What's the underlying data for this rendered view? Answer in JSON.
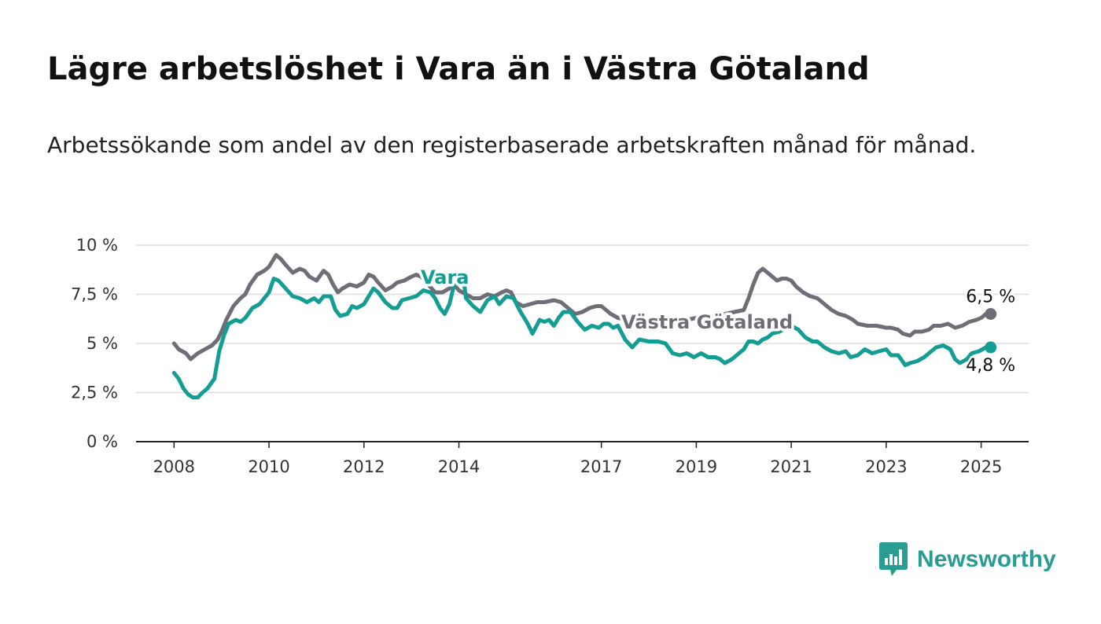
{
  "title": "Lägre arbetslöshet i Vara än i Västra Götaland",
  "subtitle": "Arbetssökande som andel av den registerbaserade arbetskraften månad för månad.",
  "brand": {
    "name": "Newsworthy",
    "color": "#2a9d93",
    "icon": "newsworthy-logo-icon"
  },
  "chart_data": {
    "type": "line",
    "title": "Lägre arbetslöshet i Vara än i Västra Götaland",
    "subtitle": "Arbetssökande som andel av den registerbaserade arbetskraften månad för månad.",
    "xlabel": "",
    "ylabel": "",
    "x_ticks": [
      {
        "year": 2008,
        "label": "2008"
      },
      {
        "year": 2010,
        "label": "2010"
      },
      {
        "year": 2012,
        "label": "2012"
      },
      {
        "year": 2014,
        "label": "2014"
      },
      {
        "year": 2017,
        "label": "2017"
      },
      {
        "year": 2019,
        "label": "2019"
      },
      {
        "year": 2021,
        "label": "2021"
      },
      {
        "year": 2023,
        "label": "2023"
      },
      {
        "year": 2025,
        "label": "2025"
      }
    ],
    "y_ticks": [
      {
        "value": 0,
        "label": "0 %"
      },
      {
        "value": 2.5,
        "label": "2,5 %"
      },
      {
        "value": 5,
        "label": "5 %"
      },
      {
        "value": 7.5,
        "label": "7,5 %"
      },
      {
        "value": 10,
        "label": "10 %"
      }
    ],
    "xlim": [
      2007.2,
      2026.0
    ],
    "ylim": [
      0,
      10
    ],
    "grid": true,
    "legend": "none",
    "series": [
      {
        "name": "Västra Götaland",
        "color": "#6f6e77",
        "end_label": "6,5 %",
        "points": [
          [
            2008.0,
            5.0
          ],
          [
            2008.1,
            4.7
          ],
          [
            2008.25,
            4.5
          ],
          [
            2008.35,
            4.2
          ],
          [
            2008.5,
            4.5
          ],
          [
            2008.65,
            4.7
          ],
          [
            2008.8,
            4.9
          ],
          [
            2008.92,
            5.2
          ],
          [
            2009.0,
            5.6
          ],
          [
            2009.1,
            6.2
          ],
          [
            2009.25,
            6.9
          ],
          [
            2009.4,
            7.3
          ],
          [
            2009.5,
            7.5
          ],
          [
            2009.6,
            8.0
          ],
          [
            2009.75,
            8.5
          ],
          [
            2009.9,
            8.7
          ],
          [
            2010.0,
            8.9
          ],
          [
            2010.1,
            9.3
          ],
          [
            2010.15,
            9.5
          ],
          [
            2010.25,
            9.3
          ],
          [
            2010.35,
            9.0
          ],
          [
            2010.5,
            8.6
          ],
          [
            2010.65,
            8.8
          ],
          [
            2010.75,
            8.7
          ],
          [
            2010.85,
            8.4
          ],
          [
            2011.0,
            8.2
          ],
          [
            2011.15,
            8.7
          ],
          [
            2011.25,
            8.5
          ],
          [
            2011.35,
            8.0
          ],
          [
            2011.45,
            7.6
          ],
          [
            2011.55,
            7.8
          ],
          [
            2011.7,
            8.0
          ],
          [
            2011.85,
            7.9
          ],
          [
            2012.0,
            8.1
          ],
          [
            2012.1,
            8.5
          ],
          [
            2012.2,
            8.4
          ],
          [
            2012.3,
            8.1
          ],
          [
            2012.45,
            7.7
          ],
          [
            2012.6,
            7.9
          ],
          [
            2012.7,
            8.1
          ],
          [
            2012.85,
            8.2
          ],
          [
            2013.0,
            8.4
          ],
          [
            2013.1,
            8.5
          ],
          [
            2013.2,
            8.4
          ],
          [
            2013.35,
            8.0
          ],
          [
            2013.5,
            7.6
          ],
          [
            2013.65,
            7.6
          ],
          [
            2013.8,
            7.8
          ],
          [
            2013.9,
            8.0
          ],
          [
            2014.0,
            7.7
          ],
          [
            2014.15,
            7.5
          ],
          [
            2014.3,
            7.3
          ],
          [
            2014.45,
            7.3
          ],
          [
            2014.6,
            7.5
          ],
          [
            2014.75,
            7.4
          ],
          [
            2014.9,
            7.6
          ],
          [
            2015.0,
            7.7
          ],
          [
            2015.1,
            7.6
          ],
          [
            2015.2,
            7.1
          ],
          [
            2015.35,
            6.9
          ],
          [
            2015.5,
            7.0
          ],
          [
            2015.65,
            7.1
          ],
          [
            2015.8,
            7.1
          ],
          [
            2016.0,
            7.2
          ],
          [
            2016.15,
            7.1
          ],
          [
            2016.3,
            6.8
          ],
          [
            2016.45,
            6.5
          ],
          [
            2016.6,
            6.6
          ],
          [
            2016.75,
            6.8
          ],
          [
            2016.9,
            6.9
          ],
          [
            2017.0,
            6.9
          ],
          [
            2017.1,
            6.7
          ],
          [
            2017.2,
            6.5
          ],
          [
            2017.35,
            6.3
          ],
          [
            2017.5,
            6.2
          ],
          [
            2017.7,
            6.1
          ],
          [
            2017.85,
            6.0
          ],
          [
            2018.0,
            6.0
          ],
          [
            2018.2,
            6.0
          ],
          [
            2018.4,
            6.0
          ],
          [
            2018.6,
            6.1
          ],
          [
            2018.8,
            6.2
          ],
          [
            2019.0,
            6.3
          ],
          [
            2019.2,
            6.3
          ],
          [
            2019.4,
            6.4
          ],
          [
            2019.6,
            6.5
          ],
          [
            2019.8,
            6.6
          ],
          [
            2020.0,
            6.7
          ],
          [
            2020.1,
            7.3
          ],
          [
            2020.2,
            8.0
          ],
          [
            2020.3,
            8.6
          ],
          [
            2020.4,
            8.8
          ],
          [
            2020.5,
            8.6
          ],
          [
            2020.6,
            8.4
          ],
          [
            2020.7,
            8.2
          ],
          [
            2020.8,
            8.3
          ],
          [
            2020.9,
            8.3
          ],
          [
            2021.0,
            8.2
          ],
          [
            2021.1,
            7.9
          ],
          [
            2021.25,
            7.6
          ],
          [
            2021.4,
            7.4
          ],
          [
            2021.55,
            7.3
          ],
          [
            2021.7,
            7.0
          ],
          [
            2021.85,
            6.7
          ],
          [
            2022.0,
            6.5
          ],
          [
            2022.15,
            6.4
          ],
          [
            2022.3,
            6.2
          ],
          [
            2022.4,
            6.0
          ],
          [
            2022.6,
            5.9
          ],
          [
            2022.8,
            5.9
          ],
          [
            2023.0,
            5.8
          ],
          [
            2023.1,
            5.8
          ],
          [
            2023.25,
            5.7
          ],
          [
            2023.35,
            5.5
          ],
          [
            2023.5,
            5.4
          ],
          [
            2023.6,
            5.6
          ],
          [
            2023.75,
            5.6
          ],
          [
            2023.9,
            5.7
          ],
          [
            2024.0,
            5.9
          ],
          [
            2024.15,
            5.9
          ],
          [
            2024.3,
            6.0
          ],
          [
            2024.45,
            5.8
          ],
          [
            2024.6,
            5.9
          ],
          [
            2024.75,
            6.1
          ],
          [
            2024.9,
            6.2
          ],
          [
            2025.0,
            6.3
          ],
          [
            2025.1,
            6.5
          ],
          [
            2025.2,
            6.5
          ]
        ]
      },
      {
        "name": "Vara",
        "color": "#139d93",
        "end_label": "4,8 %",
        "points": [
          [
            2008.0,
            3.5
          ],
          [
            2008.1,
            3.2
          ],
          [
            2008.2,
            2.7
          ],
          [
            2008.3,
            2.4
          ],
          [
            2008.4,
            2.25
          ],
          [
            2008.5,
            2.25
          ],
          [
            2008.6,
            2.5
          ],
          [
            2008.7,
            2.7
          ],
          [
            2008.85,
            3.2
          ],
          [
            2008.95,
            4.6
          ],
          [
            2009.05,
            5.4
          ],
          [
            2009.15,
            6.0
          ],
          [
            2009.3,
            6.2
          ],
          [
            2009.4,
            6.1
          ],
          [
            2009.5,
            6.3
          ],
          [
            2009.65,
            6.8
          ],
          [
            2009.8,
            7.0
          ],
          [
            2009.9,
            7.3
          ],
          [
            2010.0,
            7.6
          ],
          [
            2010.1,
            8.3
          ],
          [
            2010.2,
            8.2
          ],
          [
            2010.35,
            7.8
          ],
          [
            2010.5,
            7.4
          ],
          [
            2010.65,
            7.3
          ],
          [
            2010.8,
            7.1
          ],
          [
            2010.95,
            7.3
          ],
          [
            2011.05,
            7.1
          ],
          [
            2011.15,
            7.4
          ],
          [
            2011.3,
            7.4
          ],
          [
            2011.4,
            6.7
          ],
          [
            2011.5,
            6.4
          ],
          [
            2011.65,
            6.5
          ],
          [
            2011.75,
            6.9
          ],
          [
            2011.85,
            6.8
          ],
          [
            2012.0,
            7.0
          ],
          [
            2012.1,
            7.4
          ],
          [
            2012.2,
            7.8
          ],
          [
            2012.3,
            7.6
          ],
          [
            2012.45,
            7.1
          ],
          [
            2012.6,
            6.8
          ],
          [
            2012.7,
            6.8
          ],
          [
            2012.8,
            7.2
          ],
          [
            2012.95,
            7.3
          ],
          [
            2013.1,
            7.4
          ],
          [
            2013.25,
            7.7
          ],
          [
            2013.4,
            7.6
          ],
          [
            2013.5,
            7.3
          ],
          [
            2013.6,
            6.8
          ],
          [
            2013.7,
            6.5
          ],
          [
            2013.8,
            7.0
          ],
          [
            2013.9,
            8.0
          ],
          [
            2014.1,
            8.2
          ],
          [
            2014.15,
            7.3
          ],
          [
            2014.3,
            6.9
          ],
          [
            2014.45,
            6.6
          ],
          [
            2014.6,
            7.2
          ],
          [
            2014.75,
            7.4
          ],
          [
            2014.85,
            7.0
          ],
          [
            2015.0,
            7.4
          ],
          [
            2015.15,
            7.3
          ],
          [
            2015.3,
            6.6
          ],
          [
            2015.45,
            6.0
          ],
          [
            2015.55,
            5.5
          ],
          [
            2015.7,
            6.2
          ],
          [
            2015.8,
            6.1
          ],
          [
            2015.9,
            6.2
          ],
          [
            2016.0,
            5.9
          ],
          [
            2016.1,
            6.3
          ],
          [
            2016.2,
            6.6
          ],
          [
            2016.35,
            6.6
          ],
          [
            2016.5,
            6.1
          ],
          [
            2016.65,
            5.7
          ],
          [
            2016.8,
            5.9
          ],
          [
            2016.95,
            5.8
          ],
          [
            2017.05,
            6.0
          ],
          [
            2017.15,
            6.0
          ],
          [
            2017.25,
            5.8
          ],
          [
            2017.35,
            5.9
          ],
          [
            2017.5,
            5.2
          ],
          [
            2017.65,
            4.8
          ],
          [
            2017.8,
            5.2
          ],
          [
            2018.0,
            5.1
          ],
          [
            2018.2,
            5.1
          ],
          [
            2018.35,
            5.0
          ],
          [
            2018.5,
            4.5
          ],
          [
            2018.65,
            4.4
          ],
          [
            2018.8,
            4.5
          ],
          [
            2018.95,
            4.3
          ],
          [
            2019.1,
            4.5
          ],
          [
            2019.25,
            4.3
          ],
          [
            2019.4,
            4.3
          ],
          [
            2019.5,
            4.2
          ],
          [
            2019.6,
            4.0
          ],
          [
            2019.75,
            4.2
          ],
          [
            2019.9,
            4.5
          ],
          [
            2020.0,
            4.7
          ],
          [
            2020.1,
            5.1
          ],
          [
            2020.2,
            5.1
          ],
          [
            2020.3,
            5.0
          ],
          [
            2020.4,
            5.2
          ],
          [
            2020.5,
            5.3
          ],
          [
            2020.6,
            5.5
          ],
          [
            2020.75,
            5.6
          ],
          [
            2020.9,
            5.8
          ],
          [
            2021.0,
            5.9
          ],
          [
            2021.15,
            5.7
          ],
          [
            2021.3,
            5.3
          ],
          [
            2021.45,
            5.1
          ],
          [
            2021.55,
            5.1
          ],
          [
            2021.7,
            4.8
          ],
          [
            2021.85,
            4.6
          ],
          [
            2022.0,
            4.5
          ],
          [
            2022.15,
            4.6
          ],
          [
            2022.25,
            4.3
          ],
          [
            2022.4,
            4.4
          ],
          [
            2022.55,
            4.7
          ],
          [
            2022.7,
            4.5
          ],
          [
            2022.85,
            4.6
          ],
          [
            2023.0,
            4.7
          ],
          [
            2023.1,
            4.4
          ],
          [
            2023.25,
            4.4
          ],
          [
            2023.4,
            3.9
          ],
          [
            2023.5,
            4.0
          ],
          [
            2023.65,
            4.1
          ],
          [
            2023.8,
            4.3
          ],
          [
            2023.9,
            4.5
          ],
          [
            2024.05,
            4.8
          ],
          [
            2024.2,
            4.9
          ],
          [
            2024.35,
            4.7
          ],
          [
            2024.45,
            4.2
          ],
          [
            2024.55,
            4.0
          ],
          [
            2024.7,
            4.2
          ],
          [
            2024.8,
            4.5
          ],
          [
            2024.95,
            4.6
          ],
          [
            2025.1,
            4.8
          ],
          [
            2025.2,
            4.8
          ]
        ]
      }
    ]
  }
}
